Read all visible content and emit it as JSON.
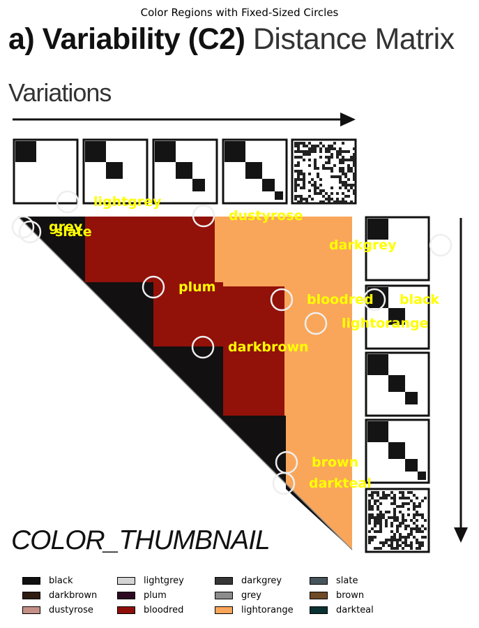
{
  "figure": {
    "title": "Color Regions with Fixed-Sized Circles",
    "heading_bold": "a) Variability (C2)",
    "heading_light": "Distance Matrix",
    "variations_label": "Variations",
    "thumbnail_label": "COLOR_THUMBNAIL"
  },
  "region_labels": [
    {
      "key": "lightgrey",
      "text": "lightgrey"
    },
    {
      "key": "dustyrose",
      "text": "dustyrose"
    },
    {
      "key": "grey",
      "text": "grey"
    },
    {
      "key": "slate",
      "text": "slate"
    },
    {
      "key": "darkgrey",
      "text": "darkgrey"
    },
    {
      "key": "plum",
      "text": "plum"
    },
    {
      "key": "bloodred",
      "text": "bloodred"
    },
    {
      "key": "black",
      "text": "black"
    },
    {
      "key": "lightorange",
      "text": "lightorange"
    },
    {
      "key": "darkbrown",
      "text": "darkbrown"
    },
    {
      "key": "brown",
      "text": "brown"
    },
    {
      "key": "darkteal",
      "text": "darkteal"
    }
  ],
  "legend": [
    {
      "label": "black",
      "color": "#111111"
    },
    {
      "label": "darkbrown",
      "color": "#2e1c10"
    },
    {
      "label": "dustyrose",
      "color": "#c49088"
    },
    {
      "label": "lightgrey",
      "color": "#d4d4d4"
    },
    {
      "label": "plum",
      "color": "#2e0a22"
    },
    {
      "label": "bloodred",
      "color": "#8e0f0a"
    },
    {
      "label": "darkgrey",
      "color": "#363636"
    },
    {
      "label": "grey",
      "color": "#8c8c8c"
    },
    {
      "label": "lightorange",
      "color": "#f9a65a"
    },
    {
      "label": "slate",
      "color": "#46545c"
    },
    {
      "label": "brown",
      "color": "#6e4a26"
    },
    {
      "label": "darkteal",
      "color": "#0a3232"
    }
  ],
  "colors": {
    "label_yellow": "#ffff00",
    "matrix_red": "#921109",
    "matrix_orange": "#f9a65a",
    "matrix_black": "#121010"
  }
}
